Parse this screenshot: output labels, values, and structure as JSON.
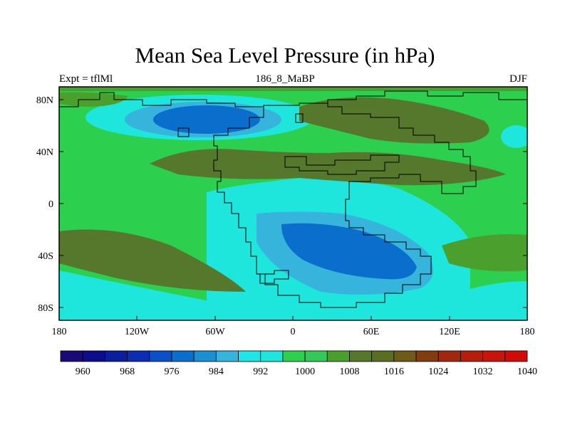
{
  "title": "Mean Sea Level Pressure (in hPa)",
  "subtitle_left": "Expt = tflMl",
  "subtitle_center": "186_8_MaBP",
  "subtitle_right": "DJF",
  "map": {
    "lat_ticks": [
      "80N",
      "40N",
      "0",
      "40S",
      "80S"
    ],
    "lon_ticks": [
      "180",
      "120W",
      "60W",
      "0",
      "60E",
      "120E",
      "180"
    ]
  },
  "colorbar": {
    "colors": [
      "#1a0a78",
      "#0d0d8c",
      "#0a1fa0",
      "#0a2db4",
      "#0a50c8",
      "#0a6ecd",
      "#1990d2",
      "#37b4dc",
      "#1ee6e6",
      "#1ee6dc",
      "#2ccf4e",
      "#32c85a",
      "#4ba02d",
      "#55782d",
      "#5a6e23",
      "#6e5a19",
      "#823c0f",
      "#a0280f",
      "#b41e0a",
      "#c8140a",
      "#d20a0a"
    ],
    "labels": [
      "960",
      "968",
      "976",
      "984",
      "992",
      "1000",
      "1008",
      "1016",
      "1024",
      "1032",
      "1040"
    ]
  }
}
